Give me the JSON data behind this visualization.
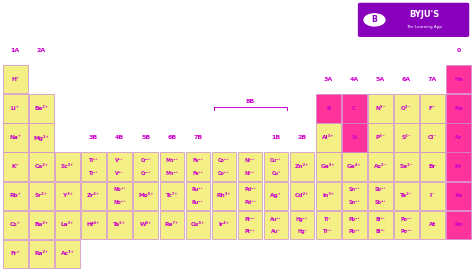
{
  "background": "#ffffff",
  "cell_yellow": "#f5f086",
  "cell_pink": "#ff3399",
  "text_color": "#cc00cc",
  "text_pink": "#cc00cc",
  "border_color": "#ddaadd",
  "logo_bg": "#8800bb",
  "elements": [
    {
      "sym": "H⁺",
      "col": 0,
      "row": 1,
      "color": "yellow",
      "lines": 1
    },
    {
      "sym": "Li⁺",
      "col": 0,
      "row": 2,
      "color": "yellow",
      "lines": 1
    },
    {
      "sym": "Be²⁺",
      "col": 1,
      "row": 2,
      "color": "yellow",
      "lines": 1
    },
    {
      "sym": "Na⁺",
      "col": 0,
      "row": 3,
      "color": "yellow",
      "lines": 1
    },
    {
      "sym": "Mg²⁺",
      "col": 1,
      "row": 3,
      "color": "yellow",
      "lines": 1
    },
    {
      "sym": "K⁺",
      "col": 0,
      "row": 4,
      "color": "yellow",
      "lines": 1
    },
    {
      "sym": "Ca²⁺",
      "col": 1,
      "row": 4,
      "color": "yellow",
      "lines": 1
    },
    {
      "sym": "Sc³⁺",
      "col": 2,
      "row": 4,
      "color": "yellow",
      "lines": 1
    },
    {
      "sym": "Ti³⁺\nTi⁴⁺",
      "col": 3,
      "row": 4,
      "color": "yellow",
      "lines": 2
    },
    {
      "sym": "V³⁺\nV⁵⁺",
      "col": 4,
      "row": 4,
      "color": "yellow",
      "lines": 2
    },
    {
      "sym": "Cr³⁺\nCr²⁺",
      "col": 5,
      "row": 4,
      "color": "yellow",
      "lines": 2
    },
    {
      "sym": "Mn²⁺\nMn⁴⁺",
      "col": 6,
      "row": 4,
      "color": "yellow",
      "lines": 2
    },
    {
      "sym": "Fe²⁺\nFe³⁺",
      "col": 7,
      "row": 4,
      "color": "yellow",
      "lines": 2
    },
    {
      "sym": "Co²⁺\nCo³⁺",
      "col": 8,
      "row": 4,
      "color": "yellow",
      "lines": 2
    },
    {
      "sym": "Ni²⁺\nNi³⁺",
      "col": 9,
      "row": 4,
      "color": "yellow",
      "lines": 2
    },
    {
      "sym": "Cu²⁺\nCu⁺",
      "col": 10,
      "row": 4,
      "color": "yellow",
      "lines": 2
    },
    {
      "sym": "Zn²⁺",
      "col": 11,
      "row": 4,
      "color": "yellow",
      "lines": 1
    },
    {
      "sym": "Ga³⁺",
      "col": 12,
      "row": 4,
      "color": "yellow",
      "lines": 1
    },
    {
      "sym": "Ge⁴⁺",
      "col": 13,
      "row": 4,
      "color": "yellow",
      "lines": 1
    },
    {
      "sym": "As³⁻",
      "col": 14,
      "row": 4,
      "color": "yellow",
      "lines": 1
    },
    {
      "sym": "Se²⁻",
      "col": 15,
      "row": 4,
      "color": "yellow",
      "lines": 1
    },
    {
      "sym": "Br",
      "col": 16,
      "row": 4,
      "color": "yellow",
      "lines": 1
    },
    {
      "sym": "Kr",
      "col": 17,
      "row": 4,
      "color": "pink",
      "lines": 1
    },
    {
      "sym": "Rb⁺",
      "col": 0,
      "row": 5,
      "color": "yellow",
      "lines": 1
    },
    {
      "sym": "Sr²⁺",
      "col": 1,
      "row": 5,
      "color": "yellow",
      "lines": 1
    },
    {
      "sym": "Y³⁺",
      "col": 2,
      "row": 5,
      "color": "yellow",
      "lines": 1
    },
    {
      "sym": "Zr⁴⁺",
      "col": 3,
      "row": 5,
      "color": "yellow",
      "lines": 1
    },
    {
      "sym": "Nb⁵⁺\nNb³⁺",
      "col": 4,
      "row": 5,
      "color": "yellow",
      "lines": 2
    },
    {
      "sym": "Mo⁶⁺",
      "col": 5,
      "row": 5,
      "color": "yellow",
      "lines": 1
    },
    {
      "sym": "Tc⁷⁺",
      "col": 6,
      "row": 5,
      "color": "yellow",
      "lines": 1
    },
    {
      "sym": "Ru³⁺\nRu⁴⁺",
      "col": 7,
      "row": 5,
      "color": "yellow",
      "lines": 2
    },
    {
      "sym": "Rh³⁺",
      "col": 8,
      "row": 5,
      "color": "yellow",
      "lines": 1
    },
    {
      "sym": "Pd²⁺\nPd⁴⁺",
      "col": 9,
      "row": 5,
      "color": "yellow",
      "lines": 2
    },
    {
      "sym": "Ag⁺",
      "col": 10,
      "row": 5,
      "color": "yellow",
      "lines": 1
    },
    {
      "sym": "Cd²⁺",
      "col": 11,
      "row": 5,
      "color": "yellow",
      "lines": 1
    },
    {
      "sym": "In³⁺",
      "col": 12,
      "row": 5,
      "color": "yellow",
      "lines": 1
    },
    {
      "sym": "Sn⁴⁺\nSn²⁺",
      "col": 13,
      "row": 5,
      "color": "yellow",
      "lines": 2
    },
    {
      "sym": "Sb³⁺\nSb⁵⁺",
      "col": 14,
      "row": 5,
      "color": "yellow",
      "lines": 2
    },
    {
      "sym": "Te²⁻",
      "col": 15,
      "row": 5,
      "color": "yellow",
      "lines": 1
    },
    {
      "sym": "I⁻",
      "col": 16,
      "row": 5,
      "color": "yellow",
      "lines": 1
    },
    {
      "sym": "Xe",
      "col": 17,
      "row": 5,
      "color": "pink",
      "lines": 1
    },
    {
      "sym": "Cs⁺",
      "col": 0,
      "row": 6,
      "color": "yellow",
      "lines": 1
    },
    {
      "sym": "Ba²⁺",
      "col": 1,
      "row": 6,
      "color": "yellow",
      "lines": 1
    },
    {
      "sym": "La³⁺",
      "col": 2,
      "row": 6,
      "color": "yellow",
      "lines": 1
    },
    {
      "sym": "Hf⁴⁺",
      "col": 3,
      "row": 6,
      "color": "yellow",
      "lines": 1
    },
    {
      "sym": "Ta⁵⁺",
      "col": 4,
      "row": 6,
      "color": "yellow",
      "lines": 1
    },
    {
      "sym": "W⁶⁺",
      "col": 5,
      "row": 6,
      "color": "yellow",
      "lines": 1
    },
    {
      "sym": "Re⁷⁺",
      "col": 6,
      "row": 6,
      "color": "yellow",
      "lines": 1
    },
    {
      "sym": "Os⁴⁺",
      "col": 7,
      "row": 6,
      "color": "yellow",
      "lines": 1
    },
    {
      "sym": "Ir⁴⁺",
      "col": 8,
      "row": 6,
      "color": "yellow",
      "lines": 1
    },
    {
      "sym": "Pt⁴⁺\nPt²⁺",
      "col": 9,
      "row": 6,
      "color": "yellow",
      "lines": 2
    },
    {
      "sym": "Au³⁺\nAu⁺",
      "col": 10,
      "row": 6,
      "color": "yellow",
      "lines": 2
    },
    {
      "sym": "Hg²⁺\nHg⁺",
      "col": 11,
      "row": 6,
      "color": "yellow",
      "lines": 2
    },
    {
      "sym": "Tl⁺\nTl³⁺",
      "col": 12,
      "row": 6,
      "color": "yellow",
      "lines": 2
    },
    {
      "sym": "Pb²⁺\nPb⁴⁺",
      "col": 13,
      "row": 6,
      "color": "yellow",
      "lines": 2
    },
    {
      "sym": "Bi³⁺\nBi⁵⁺",
      "col": 14,
      "row": 6,
      "color": "yellow",
      "lines": 2
    },
    {
      "sym": "Po²⁺\nPo⁴⁺",
      "col": 15,
      "row": 6,
      "color": "yellow",
      "lines": 2
    },
    {
      "sym": "At",
      "col": 16,
      "row": 6,
      "color": "yellow",
      "lines": 1
    },
    {
      "sym": "Rn",
      "col": 17,
      "row": 6,
      "color": "pink",
      "lines": 1
    },
    {
      "sym": "Fr⁺",
      "col": 0,
      "row": 7,
      "color": "yellow",
      "lines": 1
    },
    {
      "sym": "Ra²⁺",
      "col": 1,
      "row": 7,
      "color": "yellow",
      "lines": 1
    },
    {
      "sym": "Ac³⁺",
      "col": 2,
      "row": 7,
      "color": "yellow",
      "lines": 1
    },
    {
      "sym": "He",
      "col": 17,
      "row": 1,
      "color": "pink",
      "lines": 1
    },
    {
      "sym": "B",
      "col": 12,
      "row": 2,
      "color": "pink",
      "lines": 1
    },
    {
      "sym": "C",
      "col": 13,
      "row": 2,
      "color": "pink",
      "lines": 1
    },
    {
      "sym": "N³⁻",
      "col": 14,
      "row": 2,
      "color": "yellow",
      "lines": 1
    },
    {
      "sym": "O²⁻",
      "col": 15,
      "row": 2,
      "color": "yellow",
      "lines": 1
    },
    {
      "sym": "F⁻",
      "col": 16,
      "row": 2,
      "color": "yellow",
      "lines": 1
    },
    {
      "sym": "Ne",
      "col": 17,
      "row": 2,
      "color": "pink",
      "lines": 1
    },
    {
      "sym": "Al³⁺",
      "col": 12,
      "row": 3,
      "color": "yellow",
      "lines": 1
    },
    {
      "sym": "Si",
      "col": 13,
      "row": 3,
      "color": "pink",
      "lines": 1
    },
    {
      "sym": "P³⁻",
      "col": 14,
      "row": 3,
      "color": "yellow",
      "lines": 1
    },
    {
      "sym": "S²⁻",
      "col": 15,
      "row": 3,
      "color": "yellow",
      "lines": 1
    },
    {
      "sym": "Cl⁻",
      "col": 16,
      "row": 3,
      "color": "yellow",
      "lines": 1
    },
    {
      "sym": "Ar",
      "col": 17,
      "row": 3,
      "color": "pink",
      "lines": 1
    }
  ],
  "group_col_labels": [
    {
      "label": "1A",
      "col": 0,
      "row": 0
    },
    {
      "label": "2A",
      "col": 1,
      "row": 0
    },
    {
      "label": "3B",
      "col": 3,
      "row": 3
    },
    {
      "label": "4B",
      "col": 4,
      "row": 3
    },
    {
      "label": "5B",
      "col": 5,
      "row": 3
    },
    {
      "label": "6B",
      "col": 6,
      "row": 3
    },
    {
      "label": "7B",
      "col": 7,
      "row": 3
    },
    {
      "label": "1B",
      "col": 10,
      "row": 3
    },
    {
      "label": "2B",
      "col": 11,
      "row": 3
    },
    {
      "label": "3A",
      "col": 12,
      "row": 1
    },
    {
      "label": "4A",
      "col": 13,
      "row": 1
    },
    {
      "label": "5A",
      "col": 14,
      "row": 1
    },
    {
      "label": "6A",
      "col": 15,
      "row": 1
    },
    {
      "label": "7A",
      "col": 16,
      "row": 1
    },
    {
      "label": "0",
      "col": 17,
      "row": 0
    }
  ],
  "ncols": 18,
  "nrows": 8,
  "figw": 4.74,
  "figh": 2.74,
  "dpi": 100
}
